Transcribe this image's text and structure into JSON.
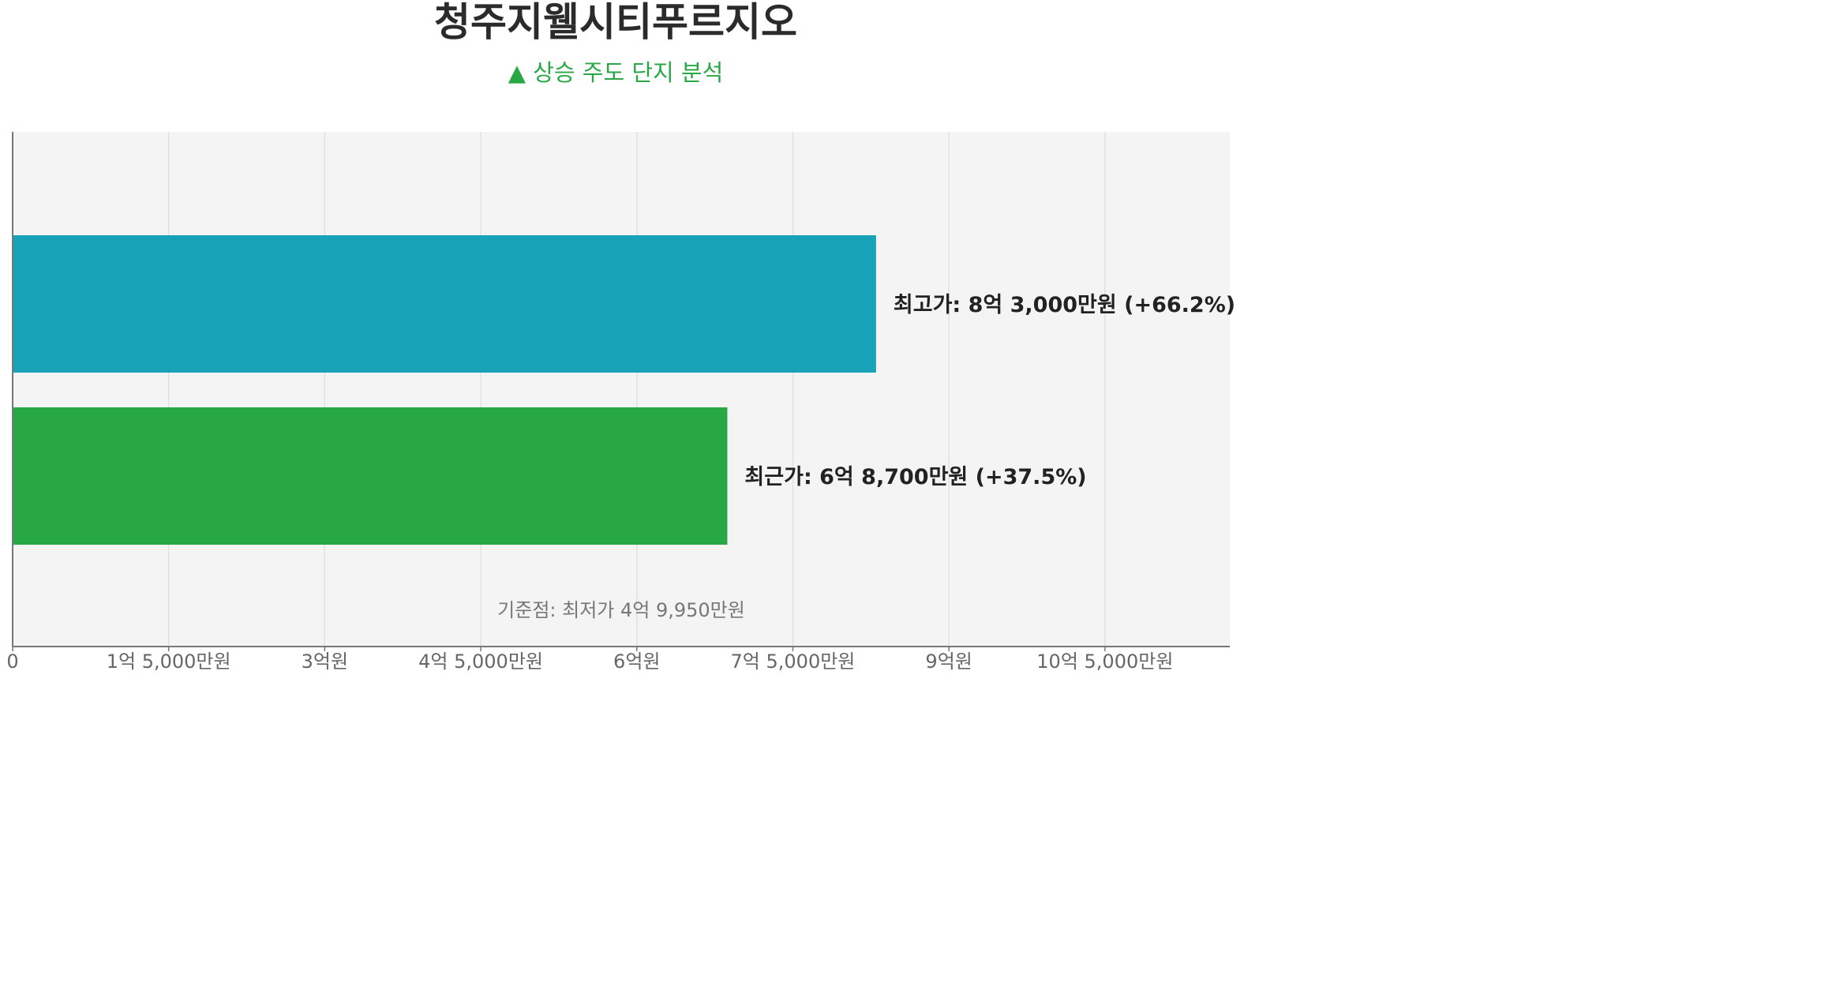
{
  "title": "청주지웰시티푸르지오",
  "subtitle": "▲ 상승 주도 단지 분석",
  "chart_data": {
    "type": "bar",
    "orientation": "horizontal",
    "categories": [
      "최고가",
      "최근가"
    ],
    "values": [
      83000,
      68700
    ],
    "value_unit": "만원",
    "bar_labels": [
      "최고가: 8억 3,000만원  (+66.2%)",
      "최근가: 6억 8,700만원  (+37.5%)"
    ],
    "colors": [
      "#17a2b8",
      "#28a745"
    ],
    "baseline_label": "기준점: 최저가 4억 9,950만원",
    "xlim": [
      0,
      117000
    ],
    "x_ticks": [
      0,
      15000,
      30000,
      45000,
      60000,
      75000,
      90000,
      105000
    ],
    "x_tick_labels": [
      "0",
      "1억 5,000만원",
      "3억원",
      "4억 5,000만원",
      "6억원",
      "7억 5,000만원",
      "9억원",
      "10억 5,000만원"
    ],
    "grid": true,
    "background": "#f4f4f4"
  }
}
